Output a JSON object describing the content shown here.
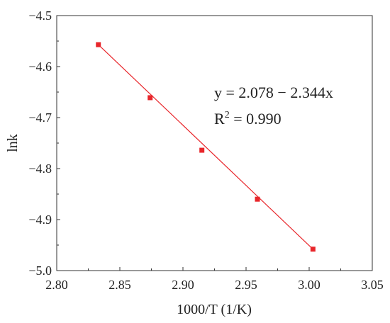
{
  "chart_data": {
    "type": "scatter",
    "xlabel": "1000/T (1/K)",
    "ylabel": "lnk",
    "xlim": [
      2.8,
      3.05
    ],
    "ylim": [
      -5.0,
      -4.5
    ],
    "x_ticks": [
      "2.80",
      "2.85",
      "2.90",
      "2.95",
      "3.00",
      "3.05"
    ],
    "y_ticks": [
      "−4.5",
      "−4.6",
      "−4.7",
      "−4.8",
      "−4.9",
      "−5.0"
    ],
    "grid": false,
    "series": [
      {
        "points": [
          {
            "x": 2.833,
            "y": -4.557
          },
          {
            "x": 2.874,
            "y": -4.661
          },
          {
            "x": 2.915,
            "y": -4.764
          },
          {
            "x": 2.959,
            "y": -4.86
          },
          {
            "x": 3.003,
            "y": -4.958
          }
        ],
        "color": "#e8262b"
      }
    ],
    "fit_line": {
      "x_start": 2.833,
      "y_start": -4.557,
      "x_end": 3.003,
      "y_end": -4.958,
      "color": "#e8262b"
    },
    "annotations": {
      "equation": "y = 2.078 − 2.344x",
      "r2_prefix": "R",
      "r2_sup": "2",
      "r2_suffix": " = 0.990"
    }
  }
}
